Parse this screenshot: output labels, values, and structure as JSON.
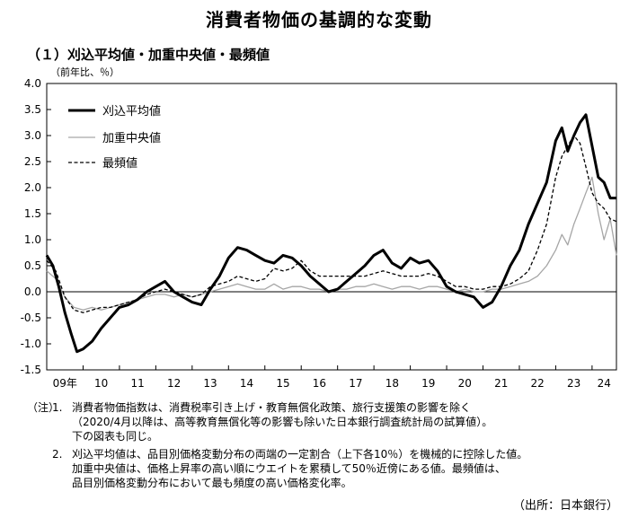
{
  "title": "消費者物価の基調的な変動",
  "subtitle": "（１）刈込平均値・加重中央値・最頻値",
  "unit_label": "（前年比、％）",
  "chart_data": {
    "type": "line",
    "ylim": [
      -1.5,
      4.0
    ],
    "y_ticks": [
      "4.0",
      "3.5",
      "3.0",
      "2.5",
      "2.0",
      "1.5",
      "1.0",
      "0.5",
      "0.0",
      "-0.5",
      "-1.0",
      "-1.5"
    ],
    "x_ticks": [
      "09年",
      "10",
      "11",
      "12",
      "13",
      "14",
      "15",
      "16",
      "17",
      "18",
      "19",
      "20",
      "21",
      "22",
      "23",
      "24"
    ],
    "xlim": [
      2009,
      2024.67
    ],
    "legend_position": "top-left",
    "grid": false,
    "series": [
      {
        "name": "刈込平均値",
        "color": "#000000",
        "style": "thick",
        "points": [
          [
            2009.0,
            0.7
          ],
          [
            2009.17,
            0.5
          ],
          [
            2009.33,
            0.1
          ],
          [
            2009.5,
            -0.4
          ],
          [
            2009.67,
            -0.8
          ],
          [
            2009.83,
            -1.15
          ],
          [
            2010.0,
            -1.1
          ],
          [
            2010.25,
            -0.95
          ],
          [
            2010.5,
            -0.7
          ],
          [
            2010.75,
            -0.5
          ],
          [
            2011.0,
            -0.3
          ],
          [
            2011.25,
            -0.25
          ],
          [
            2011.5,
            -0.15
          ],
          [
            2011.75,
            0.0
          ],
          [
            2012.0,
            0.1
          ],
          [
            2012.25,
            0.2
          ],
          [
            2012.5,
            0.0
          ],
          [
            2012.75,
            -0.1
          ],
          [
            2013.0,
            -0.2
          ],
          [
            2013.25,
            -0.25
          ],
          [
            2013.5,
            0.05
          ],
          [
            2013.75,
            0.3
          ],
          [
            2014.0,
            0.65
          ],
          [
            2014.25,
            0.85
          ],
          [
            2014.5,
            0.8
          ],
          [
            2014.75,
            0.7
          ],
          [
            2015.0,
            0.6
          ],
          [
            2015.25,
            0.55
          ],
          [
            2015.5,
            0.7
          ],
          [
            2015.75,
            0.65
          ],
          [
            2016.0,
            0.5
          ],
          [
            2016.25,
            0.3
          ],
          [
            2016.5,
            0.15
          ],
          [
            2016.75,
            0.0
          ],
          [
            2017.0,
            0.05
          ],
          [
            2017.25,
            0.2
          ],
          [
            2017.5,
            0.35
          ],
          [
            2017.75,
            0.5
          ],
          [
            2018.0,
            0.7
          ],
          [
            2018.25,
            0.8
          ],
          [
            2018.5,
            0.55
          ],
          [
            2018.75,
            0.45
          ],
          [
            2019.0,
            0.65
          ],
          [
            2019.25,
            0.55
          ],
          [
            2019.5,
            0.6
          ],
          [
            2019.75,
            0.4
          ],
          [
            2020.0,
            0.1
          ],
          [
            2020.25,
            0.0
          ],
          [
            2020.5,
            -0.05
          ],
          [
            2020.75,
            -0.1
          ],
          [
            2021.0,
            -0.3
          ],
          [
            2021.25,
            -0.2
          ],
          [
            2021.5,
            0.1
          ],
          [
            2021.75,
            0.5
          ],
          [
            2022.0,
            0.8
          ],
          [
            2022.25,
            1.3
          ],
          [
            2022.5,
            1.7
          ],
          [
            2022.75,
            2.1
          ],
          [
            2023.0,
            2.9
          ],
          [
            2023.17,
            3.15
          ],
          [
            2023.33,
            2.7
          ],
          [
            2023.5,
            3.0
          ],
          [
            2023.67,
            3.25
          ],
          [
            2023.83,
            3.4
          ],
          [
            2024.0,
            2.8
          ],
          [
            2024.17,
            2.2
          ],
          [
            2024.33,
            2.1
          ],
          [
            2024.5,
            1.8
          ],
          [
            2024.67,
            1.8
          ]
        ]
      },
      {
        "name": "加重中央値",
        "color": "#a6a6a6",
        "style": "thin",
        "points": [
          [
            2009.0,
            0.4
          ],
          [
            2009.25,
            0.25
          ],
          [
            2009.5,
            -0.1
          ],
          [
            2009.75,
            -0.3
          ],
          [
            2010.0,
            -0.35
          ],
          [
            2010.25,
            -0.3
          ],
          [
            2010.5,
            -0.35
          ],
          [
            2010.75,
            -0.3
          ],
          [
            2011.0,
            -0.25
          ],
          [
            2011.25,
            -0.2
          ],
          [
            2011.5,
            -0.15
          ],
          [
            2011.75,
            -0.1
          ],
          [
            2012.0,
            -0.05
          ],
          [
            2012.25,
            -0.05
          ],
          [
            2012.5,
            -0.1
          ],
          [
            2012.75,
            -0.05
          ],
          [
            2013.0,
            -0.1
          ],
          [
            2013.25,
            -0.05
          ],
          [
            2013.5,
            0.0
          ],
          [
            2013.75,
            0.05
          ],
          [
            2014.0,
            0.1
          ],
          [
            2014.25,
            0.15
          ],
          [
            2014.5,
            0.1
          ],
          [
            2014.75,
            0.05
          ],
          [
            2015.0,
            0.05
          ],
          [
            2015.25,
            0.15
          ],
          [
            2015.5,
            0.05
          ],
          [
            2015.75,
            0.1
          ],
          [
            2016.0,
            0.1
          ],
          [
            2016.25,
            0.05
          ],
          [
            2016.5,
            0.05
          ],
          [
            2016.75,
            0.0
          ],
          [
            2017.0,
            0.05
          ],
          [
            2017.25,
            0.05
          ],
          [
            2017.5,
            0.1
          ],
          [
            2017.75,
            0.1
          ],
          [
            2018.0,
            0.15
          ],
          [
            2018.25,
            0.1
          ],
          [
            2018.5,
            0.05
          ],
          [
            2018.75,
            0.1
          ],
          [
            2019.0,
            0.1
          ],
          [
            2019.25,
            0.05
          ],
          [
            2019.5,
            0.1
          ],
          [
            2019.75,
            0.1
          ],
          [
            2020.0,
            0.05
          ],
          [
            2020.25,
            0.0
          ],
          [
            2020.5,
            0.05
          ],
          [
            2020.75,
            0.0
          ],
          [
            2021.0,
            0.0
          ],
          [
            2021.25,
            0.05
          ],
          [
            2021.5,
            0.05
          ],
          [
            2021.75,
            0.1
          ],
          [
            2022.0,
            0.15
          ],
          [
            2022.25,
            0.2
          ],
          [
            2022.5,
            0.3
          ],
          [
            2022.75,
            0.5
          ],
          [
            2023.0,
            0.8
          ],
          [
            2023.17,
            1.1
          ],
          [
            2023.33,
            0.9
          ],
          [
            2023.5,
            1.3
          ],
          [
            2023.67,
            1.6
          ],
          [
            2023.83,
            1.9
          ],
          [
            2024.0,
            2.2
          ],
          [
            2024.17,
            1.5
          ],
          [
            2024.33,
            1.0
          ],
          [
            2024.5,
            1.4
          ],
          [
            2024.67,
            0.7
          ]
        ]
      },
      {
        "name": "最頻値",
        "color": "#000000",
        "style": "dashed",
        "points": [
          [
            2009.0,
            0.6
          ],
          [
            2009.25,
            0.4
          ],
          [
            2009.5,
            -0.1
          ],
          [
            2009.75,
            -0.35
          ],
          [
            2010.0,
            -0.4
          ],
          [
            2010.25,
            -0.35
          ],
          [
            2010.5,
            -0.3
          ],
          [
            2010.75,
            -0.3
          ],
          [
            2011.0,
            -0.25
          ],
          [
            2011.25,
            -0.2
          ],
          [
            2011.5,
            -0.15
          ],
          [
            2011.75,
            -0.05
          ],
          [
            2012.0,
            0.0
          ],
          [
            2012.25,
            0.05
          ],
          [
            2012.5,
            0.0
          ],
          [
            2012.75,
            -0.05
          ],
          [
            2013.0,
            -0.1
          ],
          [
            2013.25,
            -0.05
          ],
          [
            2013.5,
            0.1
          ],
          [
            2013.75,
            0.15
          ],
          [
            2014.0,
            0.2
          ],
          [
            2014.25,
            0.3
          ],
          [
            2014.5,
            0.25
          ],
          [
            2014.75,
            0.2
          ],
          [
            2015.0,
            0.25
          ],
          [
            2015.25,
            0.45
          ],
          [
            2015.5,
            0.4
          ],
          [
            2015.75,
            0.45
          ],
          [
            2016.0,
            0.6
          ],
          [
            2016.25,
            0.4
          ],
          [
            2016.5,
            0.3
          ],
          [
            2016.75,
            0.3
          ],
          [
            2017.0,
            0.3
          ],
          [
            2017.25,
            0.3
          ],
          [
            2017.5,
            0.3
          ],
          [
            2017.75,
            0.3
          ],
          [
            2018.0,
            0.35
          ],
          [
            2018.25,
            0.4
          ],
          [
            2018.5,
            0.35
          ],
          [
            2018.75,
            0.3
          ],
          [
            2019.0,
            0.3
          ],
          [
            2019.25,
            0.3
          ],
          [
            2019.5,
            0.35
          ],
          [
            2019.75,
            0.3
          ],
          [
            2020.0,
            0.2
          ],
          [
            2020.25,
            0.1
          ],
          [
            2020.5,
            0.1
          ],
          [
            2020.75,
            0.05
          ],
          [
            2021.0,
            0.05
          ],
          [
            2021.25,
            0.1
          ],
          [
            2021.5,
            0.1
          ],
          [
            2021.75,
            0.15
          ],
          [
            2022.0,
            0.25
          ],
          [
            2022.25,
            0.4
          ],
          [
            2022.5,
            0.8
          ],
          [
            2022.75,
            1.3
          ],
          [
            2023.0,
            2.2
          ],
          [
            2023.17,
            2.6
          ],
          [
            2023.33,
            2.8
          ],
          [
            2023.5,
            3.0
          ],
          [
            2023.67,
            2.85
          ],
          [
            2023.83,
            2.4
          ],
          [
            2024.0,
            1.9
          ],
          [
            2024.17,
            1.7
          ],
          [
            2024.33,
            1.6
          ],
          [
            2024.5,
            1.4
          ],
          [
            2024.67,
            1.35
          ]
        ]
      }
    ]
  },
  "notes": {
    "label": "（注）",
    "items": [
      {
        "num": "1.",
        "lines": [
          "消費者物価指数は、消費税率引き上げ・教育無償化政策、旅行支援策の影響を除く",
          "（2020/4月以降は、高等教育無償化等の影響も除いた日本銀行調査統計局の試算値）。",
          "下の図表も同じ。"
        ]
      },
      {
        "num": "2.",
        "lines": [
          "刈込平均値は、品目別価格変動分布の両端の一定割合（上下各10％）を機械的に控除した値。",
          "加重中央値は、価格上昇率の高い順にウエイトを累積して50％近傍にある値。最頻値は、",
          "品目別価格変動分布において最も頻度の高い価格変化率。"
        ]
      }
    ]
  },
  "source": "（出所：日本銀行）"
}
